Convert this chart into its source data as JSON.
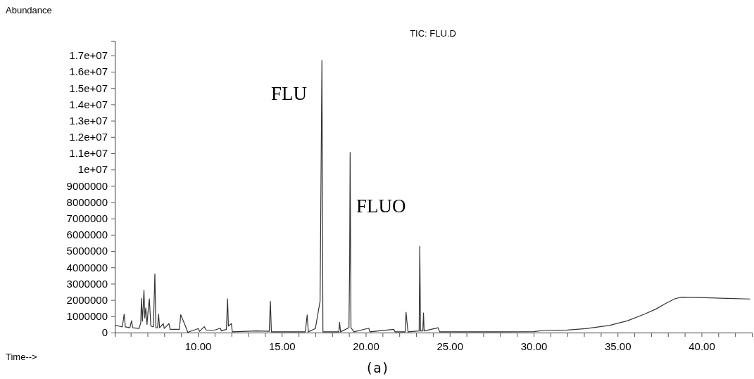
{
  "chart_data": {
    "type": "line",
    "title": "TIC: FLU.D",
    "xlabel": "Time-->",
    "ylabel": "Abundance",
    "annotations": [
      "FLU",
      "FLUO",
      "(a)"
    ],
    "xlim": [
      5.05,
      43.0
    ],
    "ylim": [
      0,
      17900000
    ],
    "xticks": [
      {
        "value": 6,
        "label": null
      },
      {
        "value": 7,
        "label": null
      },
      {
        "value": 8,
        "label": null
      },
      {
        "value": 9,
        "label": null
      },
      {
        "value": 10,
        "label": "10.00"
      },
      {
        "value": 11,
        "label": null
      },
      {
        "value": 12,
        "label": null
      },
      {
        "value": 13,
        "label": null
      },
      {
        "value": 14,
        "label": null
      },
      {
        "value": 15,
        "label": "15.00"
      },
      {
        "value": 16,
        "label": null
      },
      {
        "value": 17,
        "label": null
      },
      {
        "value": 18,
        "label": null
      },
      {
        "value": 19,
        "label": null
      },
      {
        "value": 20,
        "label": "20.00"
      },
      {
        "value": 21,
        "label": null
      },
      {
        "value": 22,
        "label": null
      },
      {
        "value": 23,
        "label": null
      },
      {
        "value": 24,
        "label": null
      },
      {
        "value": 25,
        "label": "25.00"
      },
      {
        "value": 26,
        "label": null
      },
      {
        "value": 27,
        "label": null
      },
      {
        "value": 28,
        "label": null
      },
      {
        "value": 29,
        "label": null
      },
      {
        "value": 30,
        "label": "30.00"
      },
      {
        "value": 31,
        "label": null
      },
      {
        "value": 32,
        "label": null
      },
      {
        "value": 33,
        "label": null
      },
      {
        "value": 34,
        "label": null
      },
      {
        "value": 35,
        "label": "35.00"
      },
      {
        "value": 36,
        "label": null
      },
      {
        "value": 37,
        "label": null
      },
      {
        "value": 38,
        "label": null
      },
      {
        "value": 39,
        "label": null
      },
      {
        "value": 40,
        "label": "40.00"
      },
      {
        "value": 41,
        "label": null
      },
      {
        "value": 42,
        "label": null
      },
      {
        "value": 43,
        "label": null
      }
    ],
    "yticks": [
      0,
      1000000,
      2000000,
      3000000,
      4000000,
      5000000,
      6000000,
      7000000,
      8000000,
      9000000,
      {
        "value": 10000000,
        "label": "1e+07"
      },
      {
        "value": 11000000,
        "label": "1.1e+07"
      },
      {
        "value": 12000000,
        "label": "1.2e+07"
      },
      {
        "value": 13000000,
        "label": "1.3e+07"
      },
      {
        "value": 14000000,
        "label": "1.4e+07"
      },
      {
        "value": 15000000,
        "label": "1.5e+07"
      },
      {
        "value": 16000000,
        "label": "1.6e+07"
      },
      {
        "value": 17000000,
        "label": "1.7e+07"
      }
    ],
    "grid": false,
    "marker": "none",
    "line_style": "solid",
    "series": [
      {
        "color": "#333333",
        "x": [
          5.1,
          5.3,
          5.5,
          5.61,
          5.68,
          5.95,
          6.05,
          6.12,
          6.5,
          6.6,
          6.64,
          6.7,
          6.79,
          6.84,
          6.9,
          6.97,
          7.05,
          7.11,
          7.2,
          7.35,
          7.44,
          7.5,
          7.6,
          7.66,
          7.72,
          7.94,
          8.0,
          8.28,
          8.35,
          8.9,
          8.98,
          9.1,
          9.26,
          9.4,
          10.03,
          10.1,
          10.38,
          10.5,
          11.0,
          11.34,
          11.4,
          11.7,
          11.77,
          11.82,
          12.0,
          12.05,
          13.5,
          14.25,
          14.32,
          14.38,
          16.4,
          16.51,
          16.58,
          17.0,
          17.28,
          17.39,
          17.45,
          18.4,
          18.44,
          18.5,
          19.0,
          19.04,
          19.07,
          19.12,
          19.3,
          20.18,
          20.25,
          21.67,
          21.75,
          22.35,
          22.4,
          22.46,
          22.52,
          23.18,
          23.22,
          23.26,
          23.4,
          23.44,
          23.48,
          24.31,
          24.4,
          26.0,
          28.0,
          30.0,
          30.6,
          32.0,
          33.1,
          34.5,
          35.6,
          36.6,
          37.3,
          37.85,
          38.4,
          38.8,
          40.2,
          41.5,
          42.9
        ],
        "values": [
          450000,
          400000,
          350000,
          1130000,
          350000,
          300000,
          730000,
          300000,
          250000,
          600000,
          2100000,
          700000,
          2600000,
          900000,
          1520000,
          500000,
          1500000,
          2070000,
          400000,
          350000,
          3600000,
          300000,
          300000,
          1130000,
          300000,
          550000,
          250000,
          550000,
          200000,
          200000,
          1100000,
          800000,
          400000,
          20000,
          250000,
          80000,
          360000,
          150000,
          150000,
          270000,
          100000,
          200000,
          2070000,
          400000,
          550000,
          50000,
          100000,
          80000,
          1930000,
          50000,
          50000,
          1080000,
          50000,
          250000,
          1930000,
          16700000,
          50000,
          50000,
          630000,
          50000,
          300000,
          4200000,
          11050000,
          300000,
          50000,
          270000,
          50000,
          200000,
          50000,
          50000,
          1250000,
          600000,
          50000,
          100000,
          5300000,
          100000,
          100000,
          1200000,
          100000,
          300000,
          50000,
          50000,
          50000,
          60000,
          130000,
          160000,
          240000,
          440000,
          730000,
          1130000,
          1450000,
          1780000,
          2070000,
          2170000,
          2140000,
          2100000,
          2060000
        ]
      }
    ]
  }
}
